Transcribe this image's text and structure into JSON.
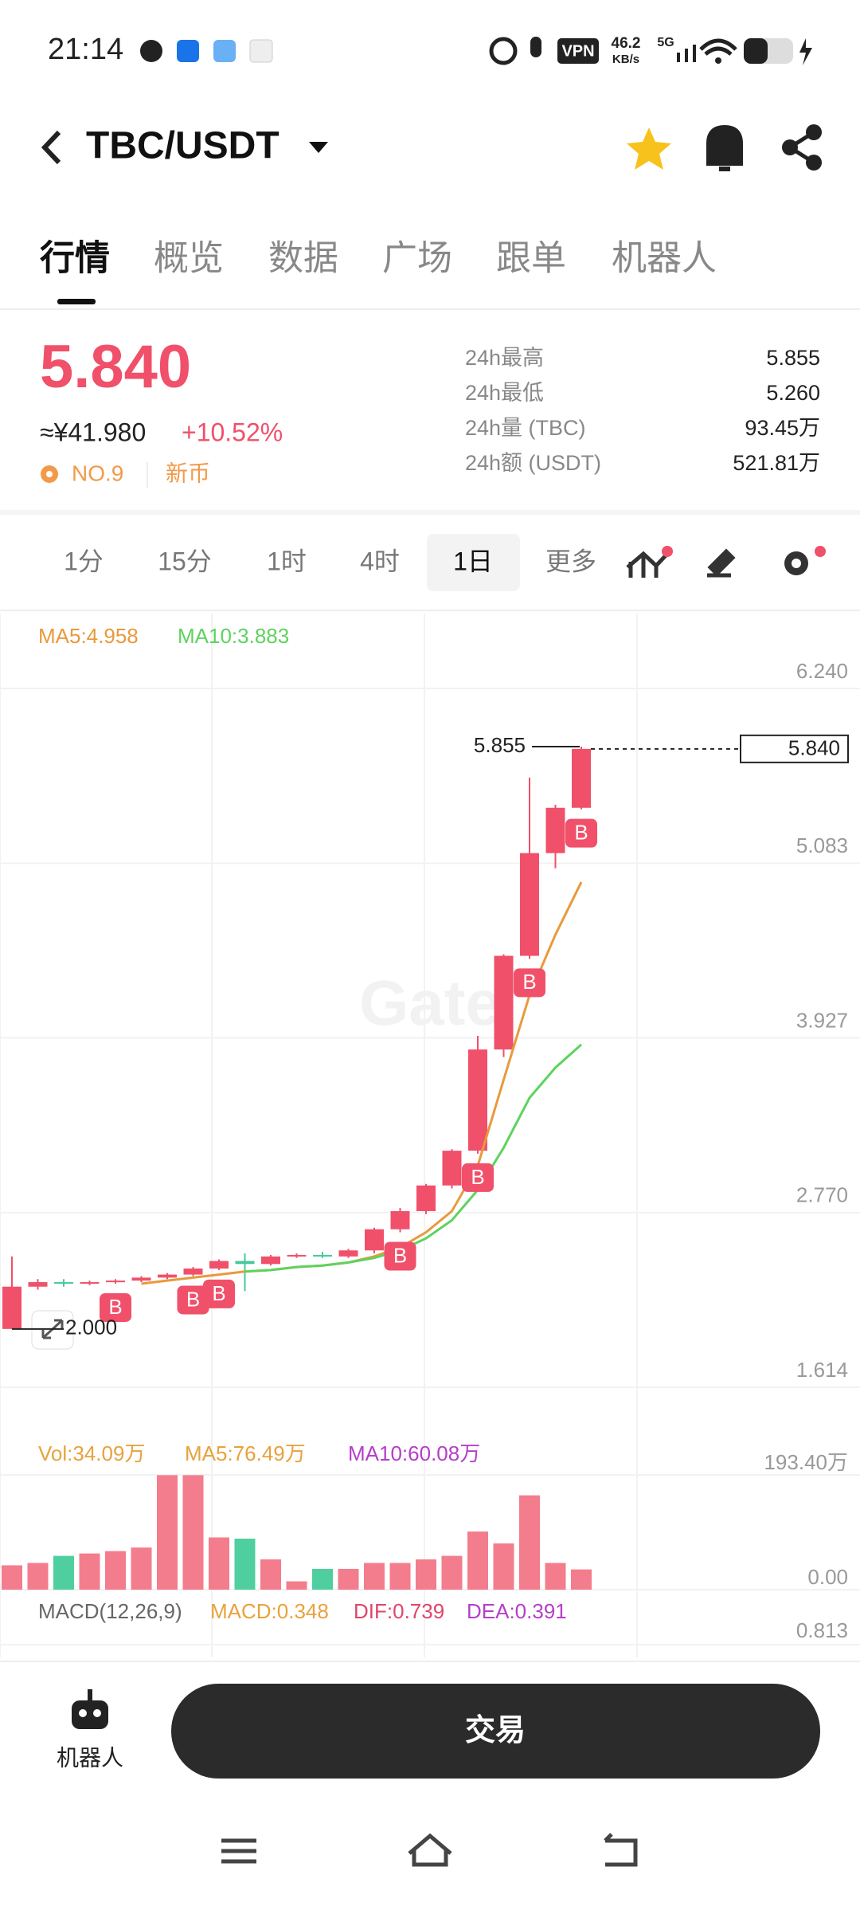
{
  "status_bar": {
    "time": "21:14",
    "vpn": "VPN",
    "speed": "46.2",
    "speed_unit": "KB/s",
    "signal": "5G"
  },
  "header": {
    "pair": "TBC/USDT"
  },
  "tabs": [
    "行情",
    "概览",
    "数据",
    "广场",
    "跟单",
    "机器人"
  ],
  "ticker": {
    "price": "5.840",
    "cny": "≈¥41.980",
    "change": "+10.52%",
    "rank": "NO.9",
    "tag": "新币",
    "stats": [
      {
        "label": "24h最高",
        "value": "5.855"
      },
      {
        "label": "24h最低",
        "value": "5.260"
      },
      {
        "label": "24h量 (TBC)",
        "value": "93.45万"
      },
      {
        "label": "24h额 (USDT)",
        "value": "521.81万"
      }
    ]
  },
  "intervals": [
    "1分",
    "15分",
    "1时",
    "4时",
    "1日",
    "更多"
  ],
  "chart_data": {
    "type": "candlestick",
    "open": [
      2.0,
      2.28,
      2.31,
      2.3,
      2.31,
      2.32,
      2.34,
      2.36,
      2.4,
      2.45,
      2.43,
      2.48,
      2.49,
      2.48,
      2.52,
      2.66,
      2.78,
      2.95,
      3.18,
      3.85,
      4.47,
      5.15,
      5.45
    ],
    "high": [
      2.48,
      2.33,
      2.33,
      2.32,
      2.33,
      2.35,
      2.37,
      2.41,
      2.46,
      2.5,
      2.49,
      2.5,
      2.51,
      2.53,
      2.67,
      2.8,
      2.96,
      3.19,
      3.94,
      4.48,
      5.65,
      5.47,
      5.855
    ],
    "low": [
      2.0,
      2.26,
      2.28,
      2.29,
      2.3,
      2.31,
      2.33,
      2.35,
      2.39,
      2.25,
      2.42,
      2.47,
      2.47,
      2.47,
      2.5,
      2.64,
      2.76,
      2.93,
      3.16,
      3.8,
      4.45,
      5.05,
      5.44
    ],
    "close": [
      2.28,
      2.31,
      2.3,
      2.31,
      2.32,
      2.34,
      2.36,
      2.4,
      2.45,
      2.43,
      2.48,
      2.49,
      2.48,
      2.52,
      2.66,
      2.78,
      2.95,
      3.18,
      3.85,
      4.47,
      5.15,
      5.45,
      5.84
    ],
    "up_color": "#f0506a",
    "down_color": "#45c99b",
    "series": [
      {
        "name": "MA5:4.958",
        "color": "#e89a3c",
        "values": [
          null,
          null,
          null,
          null,
          null,
          2.3,
          2.32,
          2.34,
          2.36,
          2.38,
          2.39,
          2.41,
          2.42,
          2.44,
          2.48,
          2.54,
          2.64,
          2.78,
          3.08,
          3.65,
          4.21,
          4.61,
          4.958
        ]
      },
      {
        "name": "MA10:3.883",
        "color": "#5ed35e",
        "values": [
          null,
          null,
          null,
          null,
          null,
          null,
          null,
          null,
          null,
          2.38,
          2.39,
          2.41,
          2.42,
          2.44,
          2.47,
          2.52,
          2.6,
          2.72,
          2.92,
          3.2,
          3.53,
          3.73,
          3.883
        ]
      }
    ],
    "ylim": [
      1.614,
      6.24
    ],
    "yticks": [
      {
        "value": 6.24,
        "label": "6.240"
      },
      {
        "value": 5.083,
        "label": "5.083"
      },
      {
        "value": 3.927,
        "label": "3.927"
      },
      {
        "value": 2.77,
        "label": "2.770"
      },
      {
        "value": 1.614,
        "label": "1.614"
      }
    ],
    "markers": [
      {
        "value": 5.855,
        "label": "5.855"
      },
      {
        "value": 2.0,
        "label": "2.000"
      },
      {
        "value": 5.84,
        "label": "5.840"
      }
    ],
    "buy_label": "B",
    "volume": {
      "title": "Vol:34.09万",
      "ma_labels": [
        "MA5:76.49万",
        "MA10:60.08万"
      ],
      "values": [
        41,
        45,
        57,
        61,
        65,
        71,
        193,
        193,
        88,
        86,
        51,
        14,
        35,
        35,
        45,
        45,
        51,
        57,
        98,
        78,
        159,
        45,
        34.09
      ],
      "ylim": [
        0,
        193.4
      ],
      "yticks": [
        {
          "value": 193.4,
          "label": "193.40万"
        },
        {
          "value": 0,
          "label": "0.00"
        }
      ]
    },
    "macd": {
      "labels": [
        "MACD(12,26,9)",
        "MACD:0.348",
        "DIF:0.739",
        "DEA:0.391"
      ],
      "yticks": [
        0.813
      ]
    }
  },
  "bottom": {
    "robot": "机器人",
    "trade": "交易"
  }
}
